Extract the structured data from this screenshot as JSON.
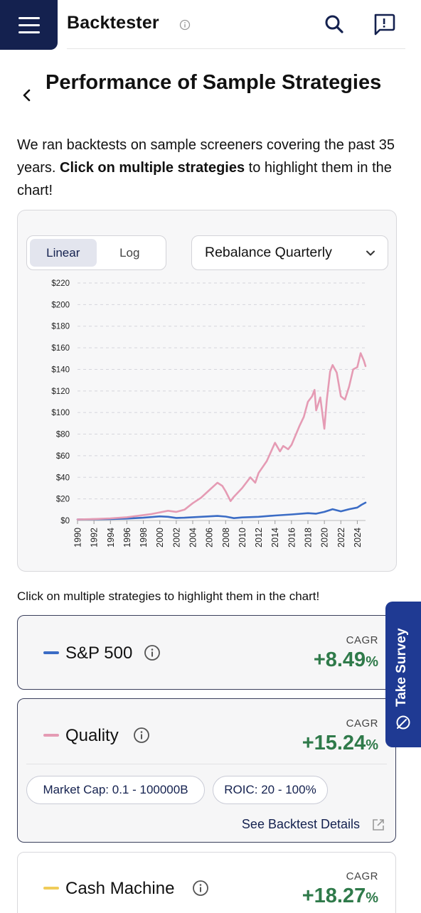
{
  "header": {
    "app_title": "Backtester",
    "menu_icon": "hamburger-menu-icon",
    "info_icon": "info-icon",
    "search_icon": "search-icon",
    "feedback_icon": "feedback-icon"
  },
  "page": {
    "title": "Performance of Sample Strategies",
    "intro_before": "We ran backtests on sample screeners covering the past 35 years. ",
    "intro_bold": "Click on multiple strategies",
    "intro_after": " to highlight them in the chart!"
  },
  "controls": {
    "scale_options": [
      "Linear",
      "Log"
    ],
    "scale_selected": "Linear",
    "rebalance_label": "Rebalance Quarterly"
  },
  "chart_data": {
    "type": "line",
    "y_tick_labels": [
      "$0",
      "$20",
      "$40",
      "$60",
      "$80",
      "$100",
      "$120",
      "$140",
      "$160",
      "$180",
      "$200",
      "$220"
    ],
    "x_tick_labels": [
      "1990",
      "1992",
      "1994",
      "1996",
      "1998",
      "2000",
      "2002",
      "2004",
      "2006",
      "2008",
      "2010",
      "2012",
      "2014",
      "2016",
      "2018",
      "2020",
      "2022",
      "2024"
    ],
    "ylim": [
      0,
      220
    ],
    "xlim": [
      1990,
      2025
    ],
    "grid": "horizontal-dashed",
    "series": [
      {
        "name": "S&P 500",
        "color": "#3b6cc5",
        "x": [
          1990,
          1992,
          1994,
          1996,
          1998,
          2000,
          2001,
          2002,
          2003,
          2005,
          2007,
          2008,
          2009,
          2010,
          2012,
          2014,
          2016,
          2018,
          2019,
          2020,
          2021,
          2022,
          2023,
          2024,
          2024.5,
          2025
        ],
        "y": [
          1,
          1.2,
          1.4,
          1.8,
          2.6,
          3.8,
          3.4,
          2.4,
          2.6,
          3.4,
          4.2,
          3.6,
          2.2,
          2.8,
          3.4,
          4.6,
          5.6,
          6.8,
          6.3,
          8,
          10.5,
          8.5,
          10.5,
          12,
          14.5,
          16.5
        ]
      },
      {
        "name": "Quality",
        "color": "#e59bb4",
        "x": [
          1990,
          1992,
          1994,
          1996,
          1998,
          1999,
          2000,
          2001,
          2002,
          2003,
          2004,
          2005,
          2006,
          2007,
          2007.6,
          2008,
          2008.6,
          2009,
          2010,
          2011,
          2011.6,
          2012,
          2013,
          2014,
          2014.6,
          2015,
          2015.6,
          2016,
          2017,
          2017.5,
          2018,
          2018.5,
          2018.8,
          2019,
          2019.5,
          2020,
          2020.3,
          2020.7,
          2021,
          2021.5,
          2022,
          2022.5,
          2023,
          2023.5,
          2024,
          2024.4,
          2024.8,
          2025
        ],
        "y": [
          1,
          1.4,
          2,
          3,
          5,
          6,
          7.5,
          9,
          8,
          10,
          16,
          21,
          28,
          35,
          32,
          27,
          18,
          22,
          30,
          40,
          35,
          44,
          55,
          72,
          64,
          69,
          66,
          70,
          88,
          96,
          110,
          115,
          121,
          102,
          114,
          85,
          112,
          138,
          144,
          137,
          115,
          112,
          124,
          140,
          142,
          155,
          148,
          143
        ]
      }
    ]
  },
  "helper_text": "Click on multiple strategies to highlight them in the chart!",
  "strategies": [
    {
      "name": "S&P 500",
      "color": "#3b6cc5",
      "cagr_label": "CAGR",
      "cagr_value": "+8.49",
      "cagr_unit": "%",
      "info_icon": "info-icon"
    },
    {
      "name": "Quality",
      "color": "#e59bb4",
      "cagr_label": "CAGR",
      "cagr_value": "+15.24",
      "cagr_unit": "%",
      "info_icon": "info-icon",
      "filters": [
        "Market Cap: 0.1 - 100000B",
        "ROIC: 20 - 100%"
      ],
      "details_link": "See Backtest Details",
      "external_icon": "external-link-icon"
    },
    {
      "name": "Cash Machine",
      "color": "#f0cc5a",
      "cagr_label": "CAGR",
      "cagr_value": "+18.27",
      "cagr_unit": "%",
      "info_icon": "info-icon"
    }
  ],
  "survey": {
    "label": "Take Survey",
    "icon": "survey-icon"
  }
}
